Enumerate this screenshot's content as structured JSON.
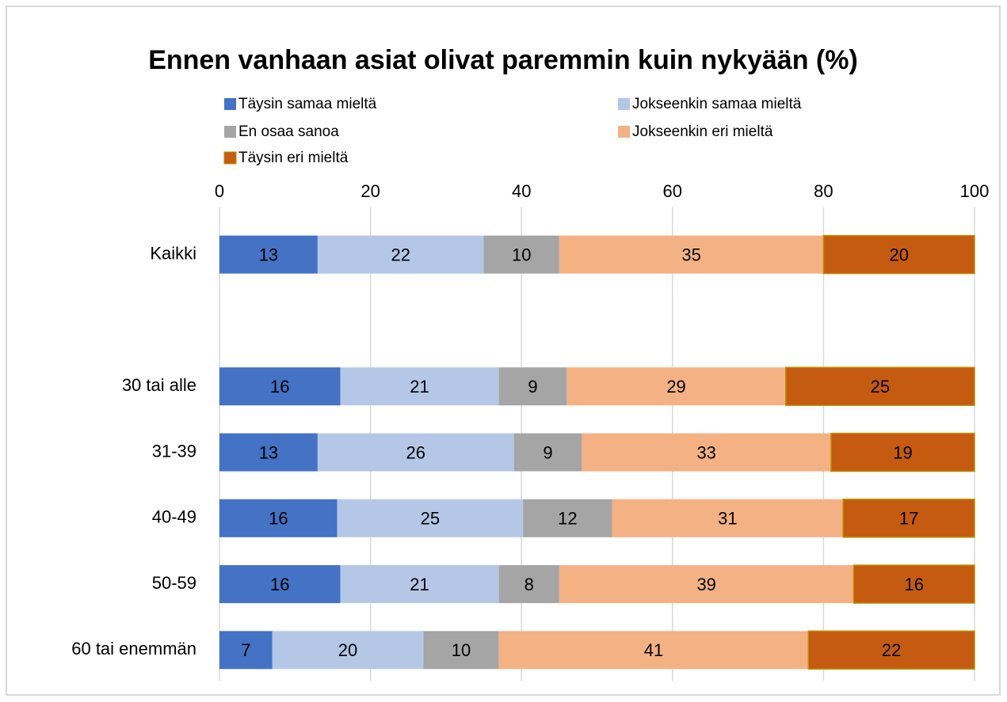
{
  "chart_data": {
    "type": "stacked_barh",
    "title": "Ennen vanhaan asiat olivat paremmin kuin nykyään (%)",
    "categories": [
      "Kaikki",
      null,
      "30 tai alle",
      "31-39",
      "40-49",
      "50-59",
      "60 tai enemmän"
    ],
    "series": [
      {
        "name": "Täysin samaa mieltä",
        "color": "#4472c4",
        "values": [
          13,
          null,
          16,
          13,
          15.6,
          16,
          7
        ],
        "value_labels": [
          "13",
          null,
          "16",
          "13",
          "16",
          "16",
          "7"
        ]
      },
      {
        "name": "Jokseenkin samaa mieltä",
        "color": "#b4c7e7",
        "values": [
          22,
          null,
          21,
          26,
          24.6,
          21,
          20
        ],
        "value_labels": [
          "22",
          null,
          "21",
          "26",
          "25",
          "21",
          "20"
        ]
      },
      {
        "name": "En osaa sanoa",
        "color": "#a5a5a5",
        "values": [
          10,
          null,
          9,
          9,
          11.8,
          8,
          10
        ],
        "value_labels": [
          "10",
          null,
          "9",
          "9",
          "12",
          "8",
          "10"
        ]
      },
      {
        "name": "Jokseenkin eri mieltä",
        "color": "#f4b183",
        "values": [
          35,
          null,
          29,
          33,
          30.6,
          39,
          41
        ],
        "value_labels": [
          "35",
          null,
          "29",
          "33",
          "31",
          "39",
          "41"
        ]
      },
      {
        "name": "Täysin eri mieltä",
        "color": "#c55a11",
        "values": [
          20,
          null,
          25,
          19,
          17.4,
          16,
          22
        ],
        "value_labels": [
          "20",
          null,
          "25",
          "19",
          "17",
          "16",
          "22"
        ]
      }
    ],
    "xlim": [
      0,
      100
    ],
    "xticks": [
      0,
      20,
      40,
      60,
      80,
      100
    ],
    "grid": true
  }
}
